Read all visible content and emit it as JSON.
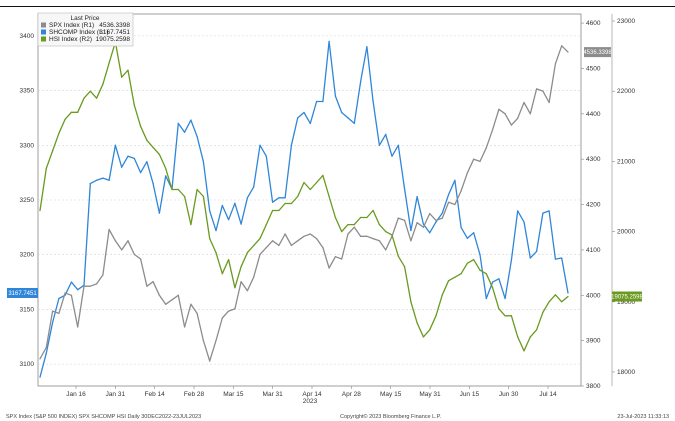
{
  "chart_data": {
    "type": "line",
    "grid": true,
    "legend": {
      "title": "Last Price",
      "placement": "top-left",
      "entries": [
        {
          "label": "SPX Index  (R1)",
          "value": "4536.3398",
          "color": "#8c8c8c"
        },
        {
          "label": "SHCOMP Index  (L1)",
          "value": "3167.7451",
          "color": "#2f86d9"
        },
        {
          "label": "HSI Index  (R2)",
          "value": "19075.2598",
          "color": "#6a9a1f"
        }
      ]
    },
    "x_ticks": [
      "Jan 16",
      "Jan 31",
      "Feb 14",
      "Feb 28",
      "Mar 15",
      "Mar 31",
      "Apr 14",
      "Apr 28",
      "May 15",
      "May 31",
      "Jun 15",
      "Jun 30",
      "Jul 14"
    ],
    "x_year_label": "2023",
    "axes": {
      "left": {
        "ticks": [
          3100,
          3150,
          3200,
          3250,
          3300,
          3350,
          3400
        ],
        "range": [
          3080,
          3420
        ]
      },
      "right1": {
        "ticks": [
          3800,
          3900,
          4000,
          4100,
          4200,
          4300,
          4400,
          4500,
          4600
        ],
        "range": [
          3800,
          4620
        ]
      },
      "right2": {
        "ticks": [
          18000,
          19000,
          20000,
          21000,
          22000,
          23000
        ],
        "range": [
          17800,
          23100
        ]
      }
    },
    "series": [
      {
        "name": "SHCOMP Index",
        "axis": "left",
        "color": "#2f86d9",
        "last_label": "3167.7451",
        "values": [
          3088,
          3110,
          3138,
          3160,
          3163,
          3175,
          3168,
          3172,
          3265,
          3268,
          3270,
          3268,
          3300,
          3280,
          3290,
          3288,
          3275,
          3285,
          3265,
          3238,
          3272,
          3260,
          3320,
          3312,
          3323,
          3308,
          3285,
          3240,
          3222,
          3245,
          3232,
          3247,
          3228,
          3252,
          3262,
          3300,
          3290,
          3248,
          3252,
          3252,
          3300,
          3325,
          3330,
          3320,
          3340,
          3340,
          3395,
          3345,
          3330,
          3325,
          3320,
          3358,
          3390,
          3340,
          3300,
          3310,
          3290,
          3300,
          3260,
          3222,
          3253,
          3228,
          3220,
          3230,
          3238,
          3255,
          3268,
          3225,
          3215,
          3220,
          3200,
          3160,
          3175,
          3178,
          3160,
          3195,
          3240,
          3230,
          3197,
          3203,
          3238,
          3240,
          3196,
          3197,
          3165
        ]
      },
      {
        "name": "SPX Index",
        "axis": "right1",
        "color": "#8c8c8c",
        "last_label": "4536.3398",
        "values": [
          3860,
          3885,
          3965,
          3960,
          4005,
          4000,
          3930,
          4020,
          4020,
          4025,
          4045,
          4145,
          4120,
          4100,
          4120,
          4090,
          4080,
          4020,
          4030,
          4000,
          3980,
          3990,
          4000,
          3930,
          3980,
          3960,
          3900,
          3855,
          3900,
          3950,
          3965,
          3970,
          4030,
          4010,
          4040,
          4090,
          4105,
          4120,
          4110,
          4135,
          4110,
          4120,
          4130,
          4135,
          4125,
          4105,
          4060,
          4085,
          4080,
          4135,
          4150,
          4130,
          4130,
          4125,
          4120,
          4100,
          4130,
          4170,
          4165,
          4120,
          4160,
          4150,
          4180,
          4165,
          4170,
          4205,
          4200,
          4230,
          4270,
          4300,
          4295,
          4325,
          4365,
          4410,
          4400,
          4375,
          4390,
          4425,
          4400,
          4455,
          4450,
          4425,
          4510,
          4550,
          4536
        ]
      },
      {
        "name": "HSI Index",
        "axis": "right2",
        "color": "#6a9a1f",
        "last_label": "19075.2598",
        "values": [
          20300,
          20900,
          21150,
          21400,
          21600,
          21700,
          21700,
          21900,
          22000,
          21900,
          22100,
          22400,
          22700,
          22200,
          22300,
          21800,
          21500,
          21300,
          21200,
          21100,
          20900,
          20600,
          20600,
          20500,
          20100,
          20600,
          20500,
          19900,
          19700,
          19400,
          19600,
          19200,
          19500,
          19700,
          19800,
          19900,
          20100,
          20300,
          20300,
          20400,
          20400,
          20500,
          20700,
          20600,
          20700,
          20800,
          20500,
          20200,
          20000,
          20100,
          20100,
          20200,
          20200,
          20300,
          20100,
          20000,
          19950,
          19650,
          19500,
          19000,
          18700,
          18500,
          18600,
          18800,
          19100,
          19300,
          19350,
          19400,
          19550,
          19600,
          19450,
          19400,
          19200,
          18900,
          18800,
          18800,
          18500,
          18300,
          18500,
          18600,
          18850,
          19000,
          19100,
          19000,
          19075
        ]
      }
    ]
  },
  "footer": {
    "left": "SPX Index (S&P 500 INDEX) SPX SHCOMP HSI  Daily 30DEC2022-23JUL2023",
    "center": "Copyright© 2023 Bloomberg Finance L.P.",
    "right": "23-Jul-2023 11:33:13"
  }
}
